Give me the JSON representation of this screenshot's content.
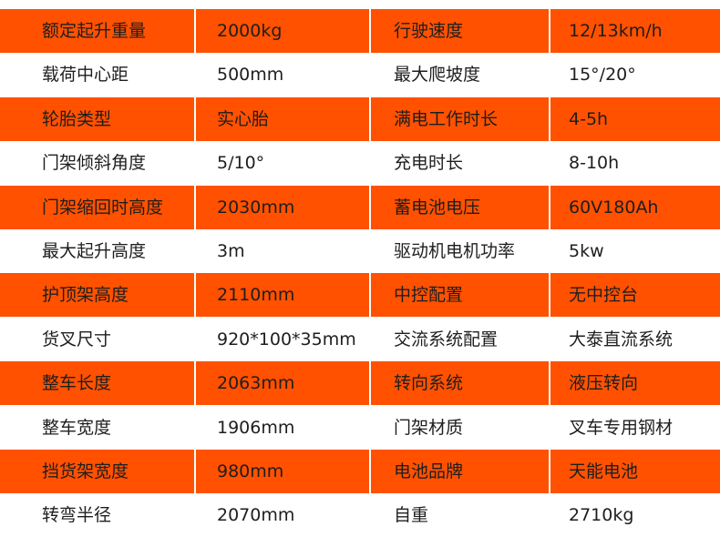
{
  "colors": {
    "accent": "#ff5100",
    "text": "#1e1e1e",
    "alt_row": "#ffffff"
  },
  "rows": [
    [
      "额定起升重量",
      "2000kg",
      "行驶速度",
      "12/13km/h"
    ],
    [
      "载荷中心距",
      "500mm",
      "最大爬坡度",
      "15°/20°"
    ],
    [
      "轮胎类型",
      "实心胎",
      "满电工作时长",
      "4-5h"
    ],
    [
      "门架倾斜角度",
      "5/10°",
      "充电时长",
      "8-10h"
    ],
    [
      "门架缩回时高度",
      "2030mm",
      "蓄电池电压",
      "60V180Ah"
    ],
    [
      "最大起升高度",
      "3m",
      "驱动机电机功率",
      "5kw"
    ],
    [
      "护顶架高度",
      "2110mm",
      "中控配置",
      "无中控台"
    ],
    [
      "货叉尺寸",
      "920*100*35mm",
      "交流系统配置",
      "大泰直流系统"
    ],
    [
      "整车长度",
      "2063mm",
      "转向系统",
      "液压转向"
    ],
    [
      "整车宽度",
      "1906mm",
      "门架材质",
      "叉车专用钢材"
    ],
    [
      "挡货架宽度",
      "980mm",
      "电池品牌",
      "天能电池"
    ],
    [
      "转弯半径",
      "2070mm",
      "自重",
      "2710kg"
    ]
  ]
}
